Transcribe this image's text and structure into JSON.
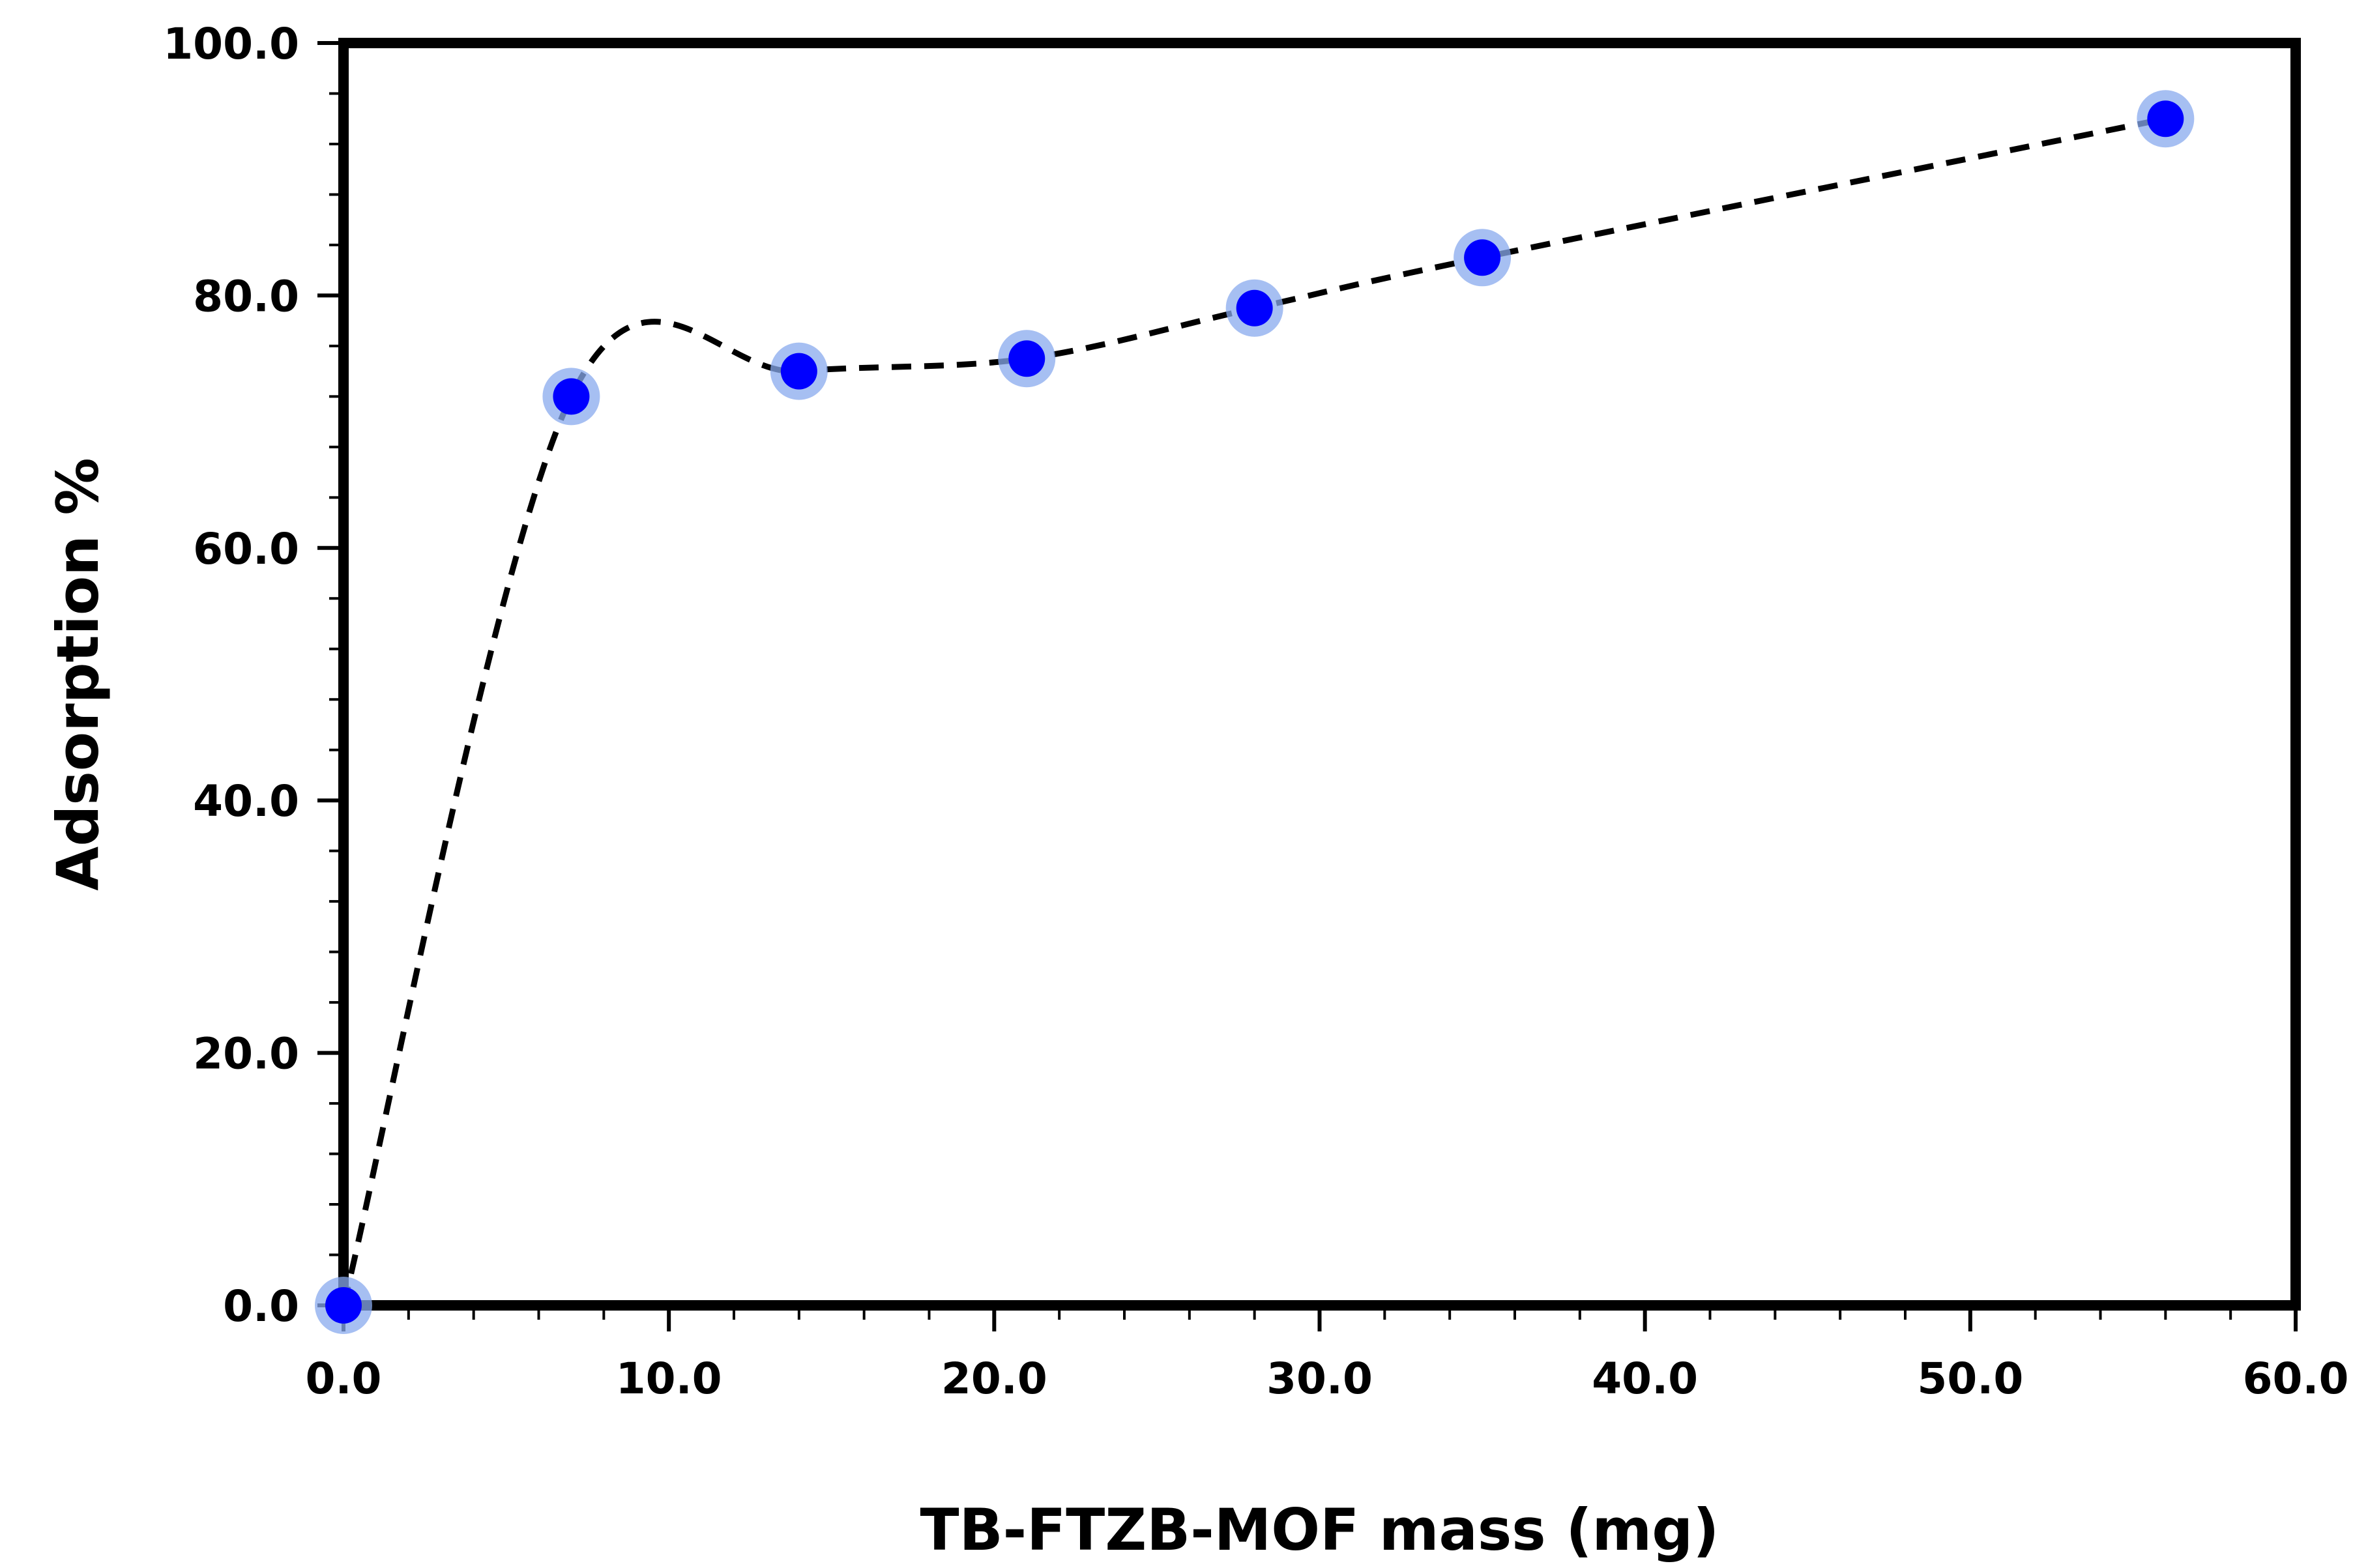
{
  "chart_data": {
    "type": "scatter",
    "title": "",
    "xlabel": "TB-FTZB-MOF mass (mg)",
    "ylabel": "Adsorption %",
    "xlim": [
      0,
      60
    ],
    "ylim": [
      0,
      100
    ],
    "x_ticks": [
      0,
      10,
      20,
      30,
      40,
      50,
      60
    ],
    "y_ticks": [
      0,
      20,
      40,
      60,
      80,
      100
    ],
    "x_tick_labels": [
      "0.0",
      "10.0",
      "20.0",
      "30.0",
      "40.0",
      "50.0",
      "60.0"
    ],
    "y_tick_labels": [
      "0.0",
      "20.0",
      "40.0",
      "60.0",
      "80.0",
      "100.0"
    ],
    "minor_tick_interval_x": 2,
    "minor_tick_interval_y": 4,
    "grid": false,
    "series": [
      {
        "name": "Adsorption %",
        "x": [
          0,
          7,
          14,
          21,
          28,
          35,
          56
        ],
        "y": [
          0,
          72,
          74,
          75,
          79,
          83,
          94
        ],
        "marker_color": "#0000ff",
        "marker_halo_color": "#88aaee",
        "line_color": "#000000",
        "line_style": "dashed",
        "smooth": true
      }
    ],
    "colors": {
      "axis": "#000000",
      "background": "#ffffff"
    }
  }
}
